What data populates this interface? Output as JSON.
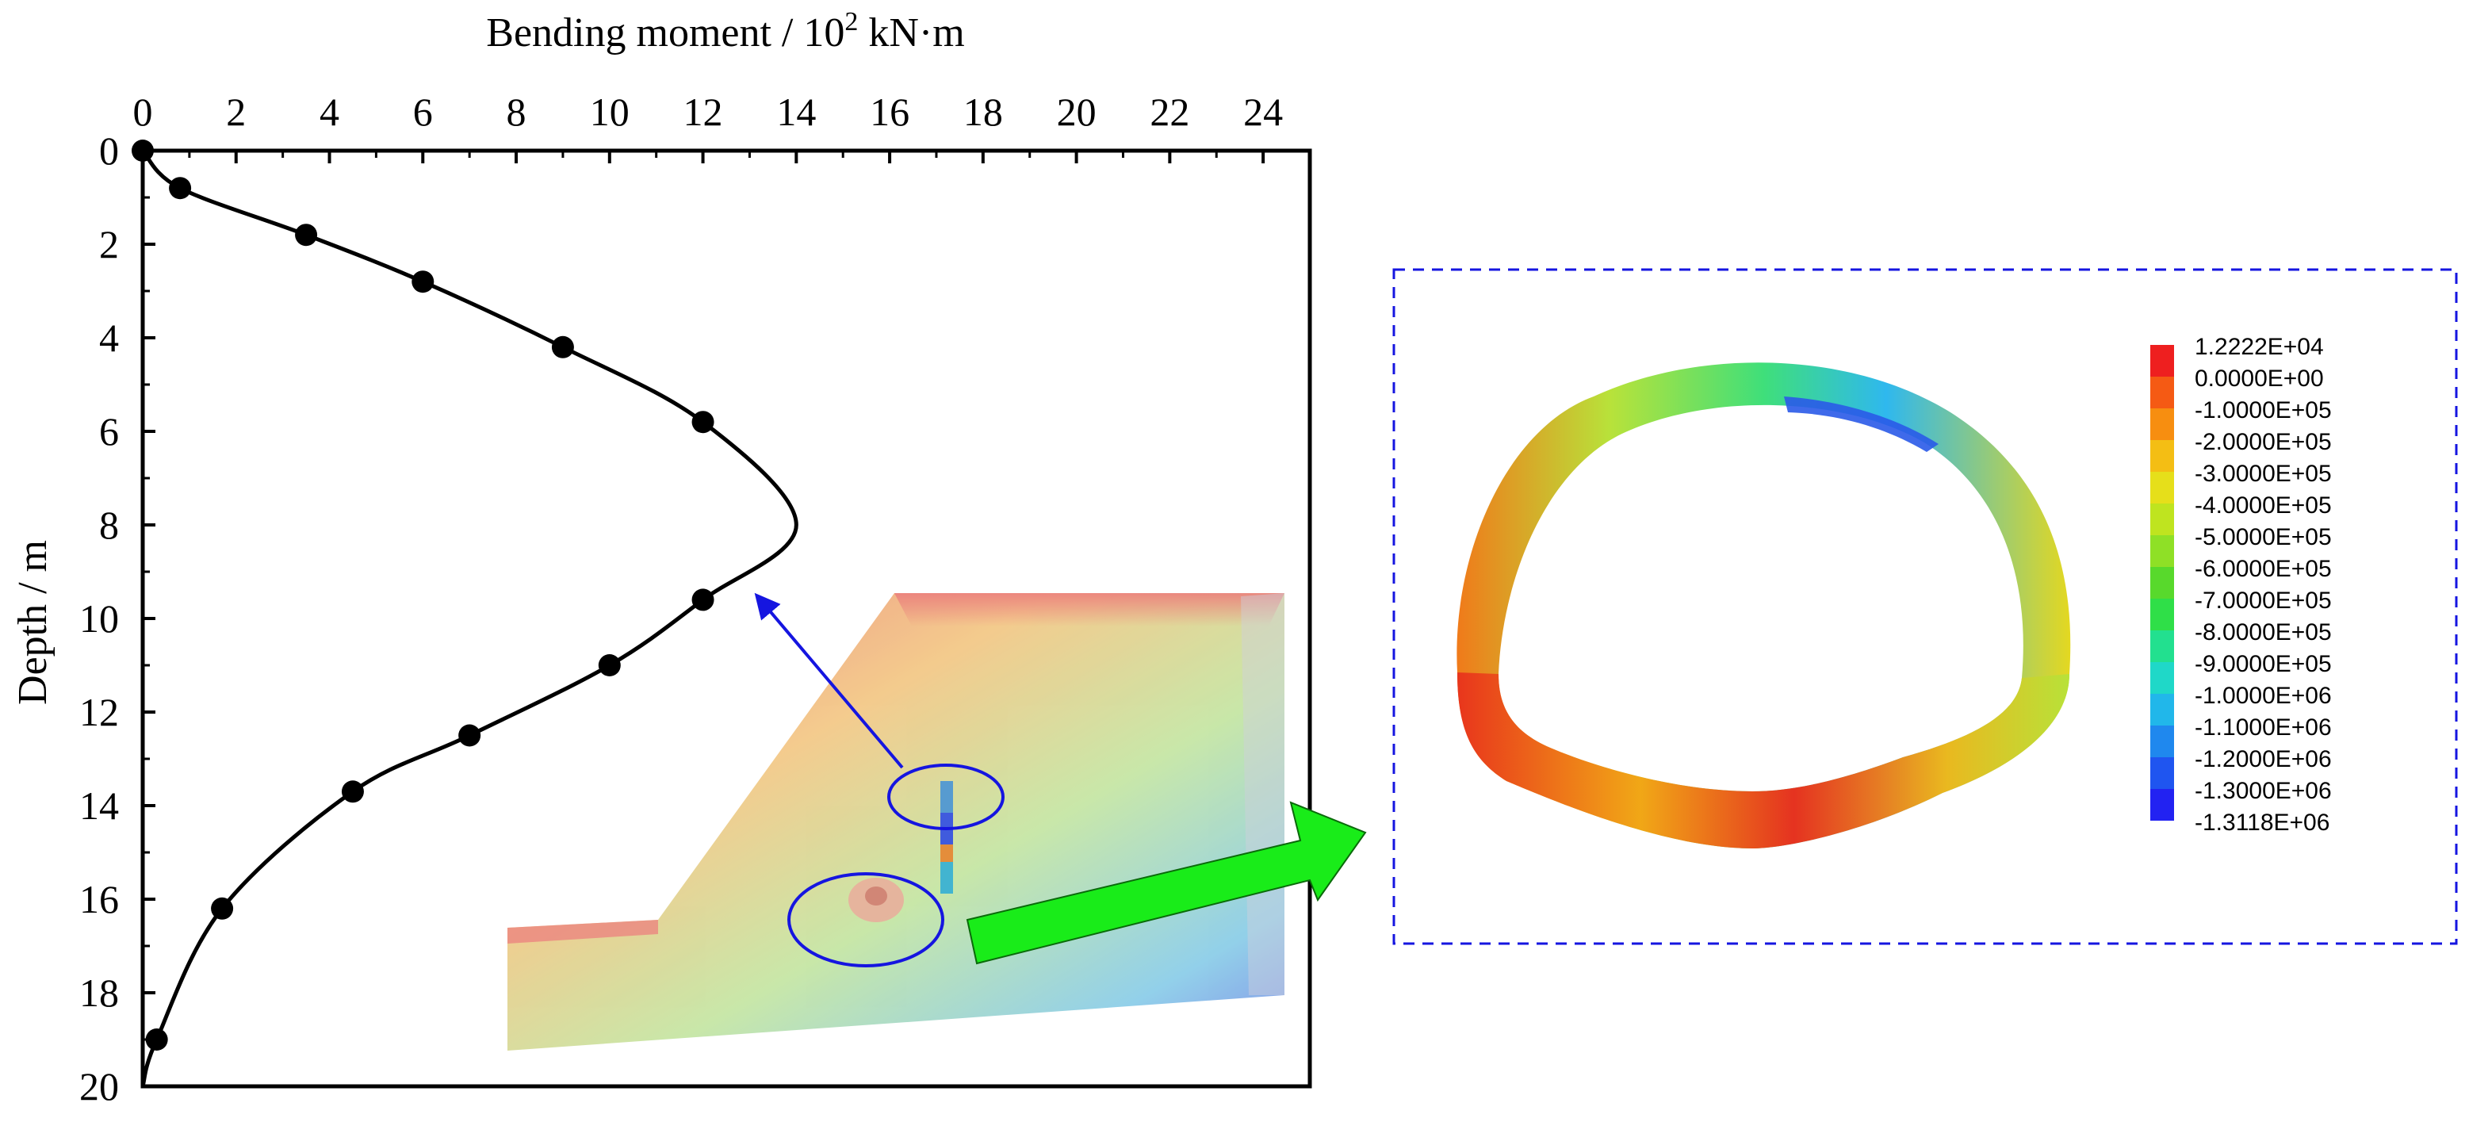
{
  "chart_data": {
    "type": "line",
    "title": "",
    "xlabel": "Bending moment / 10",
    "xlabel_sup": "2",
    "xlabel_unit": " kN·m",
    "ylabel": "Depth / m",
    "xlim": [
      0,
      25
    ],
    "ylim": [
      0,
      20
    ],
    "y_inverted": true,
    "x_axis_position": "top",
    "grid": false,
    "x_ticks": [
      "0",
      "2",
      "4",
      "6",
      "8",
      "10",
      "12",
      "14",
      "16",
      "18",
      "20",
      "22",
      "24"
    ],
    "y_ticks": [
      "0",
      "2",
      "4",
      "6",
      "8",
      "10",
      "12",
      "14",
      "16",
      "18",
      "20"
    ],
    "series": [
      {
        "style": "markers",
        "x": [
          0.0,
          0.8,
          3.5,
          6.0,
          9.0,
          12.0,
          12.0,
          10.0,
          7.0,
          4.5,
          1.7,
          0.3
        ],
        "y": [
          0.0,
          0.8,
          1.8,
          2.8,
          4.2,
          5.8,
          9.6,
          11.0,
          12.5,
          13.7,
          16.2,
          19.0
        ]
      },
      {
        "style": "line",
        "x": [
          0.0,
          0.8,
          3.5,
          6.0,
          9.0,
          12.0,
          14.0,
          12.0,
          10.0,
          7.0,
          4.5,
          1.7,
          0.3,
          0.0
        ],
        "y": [
          0.0,
          0.8,
          1.8,
          2.8,
          4.2,
          5.8,
          8.0,
          9.6,
          11.0,
          12.5,
          13.7,
          16.2,
          19.0,
          20.0
        ]
      }
    ]
  },
  "inset_legend": {
    "colors": [
      "#ee1f1f",
      "#f55a14",
      "#f78e10",
      "#f4be14",
      "#e6df1a",
      "#bfe41f",
      "#8fe026",
      "#58d92c",
      "#2fdf48",
      "#22e08f",
      "#1fd8c8",
      "#21b7ea",
      "#1f88ee",
      "#1f55f0",
      "#2222f2"
    ],
    "labels": [
      "1.2222E+04",
      "0.0000E+00",
      "-1.0000E+05",
      "-2.0000E+05",
      "-3.0000E+05",
      "-4.0000E+05",
      "-5.0000E+05",
      "-6.0000E+05",
      "-7.0000E+05",
      "-8.0000E+05",
      "-9.0000E+05",
      "-1.0000E+06",
      "-1.1000E+06",
      "-1.2000E+06",
      "-1.3000E+06",
      "-1.3118E+06"
    ]
  }
}
